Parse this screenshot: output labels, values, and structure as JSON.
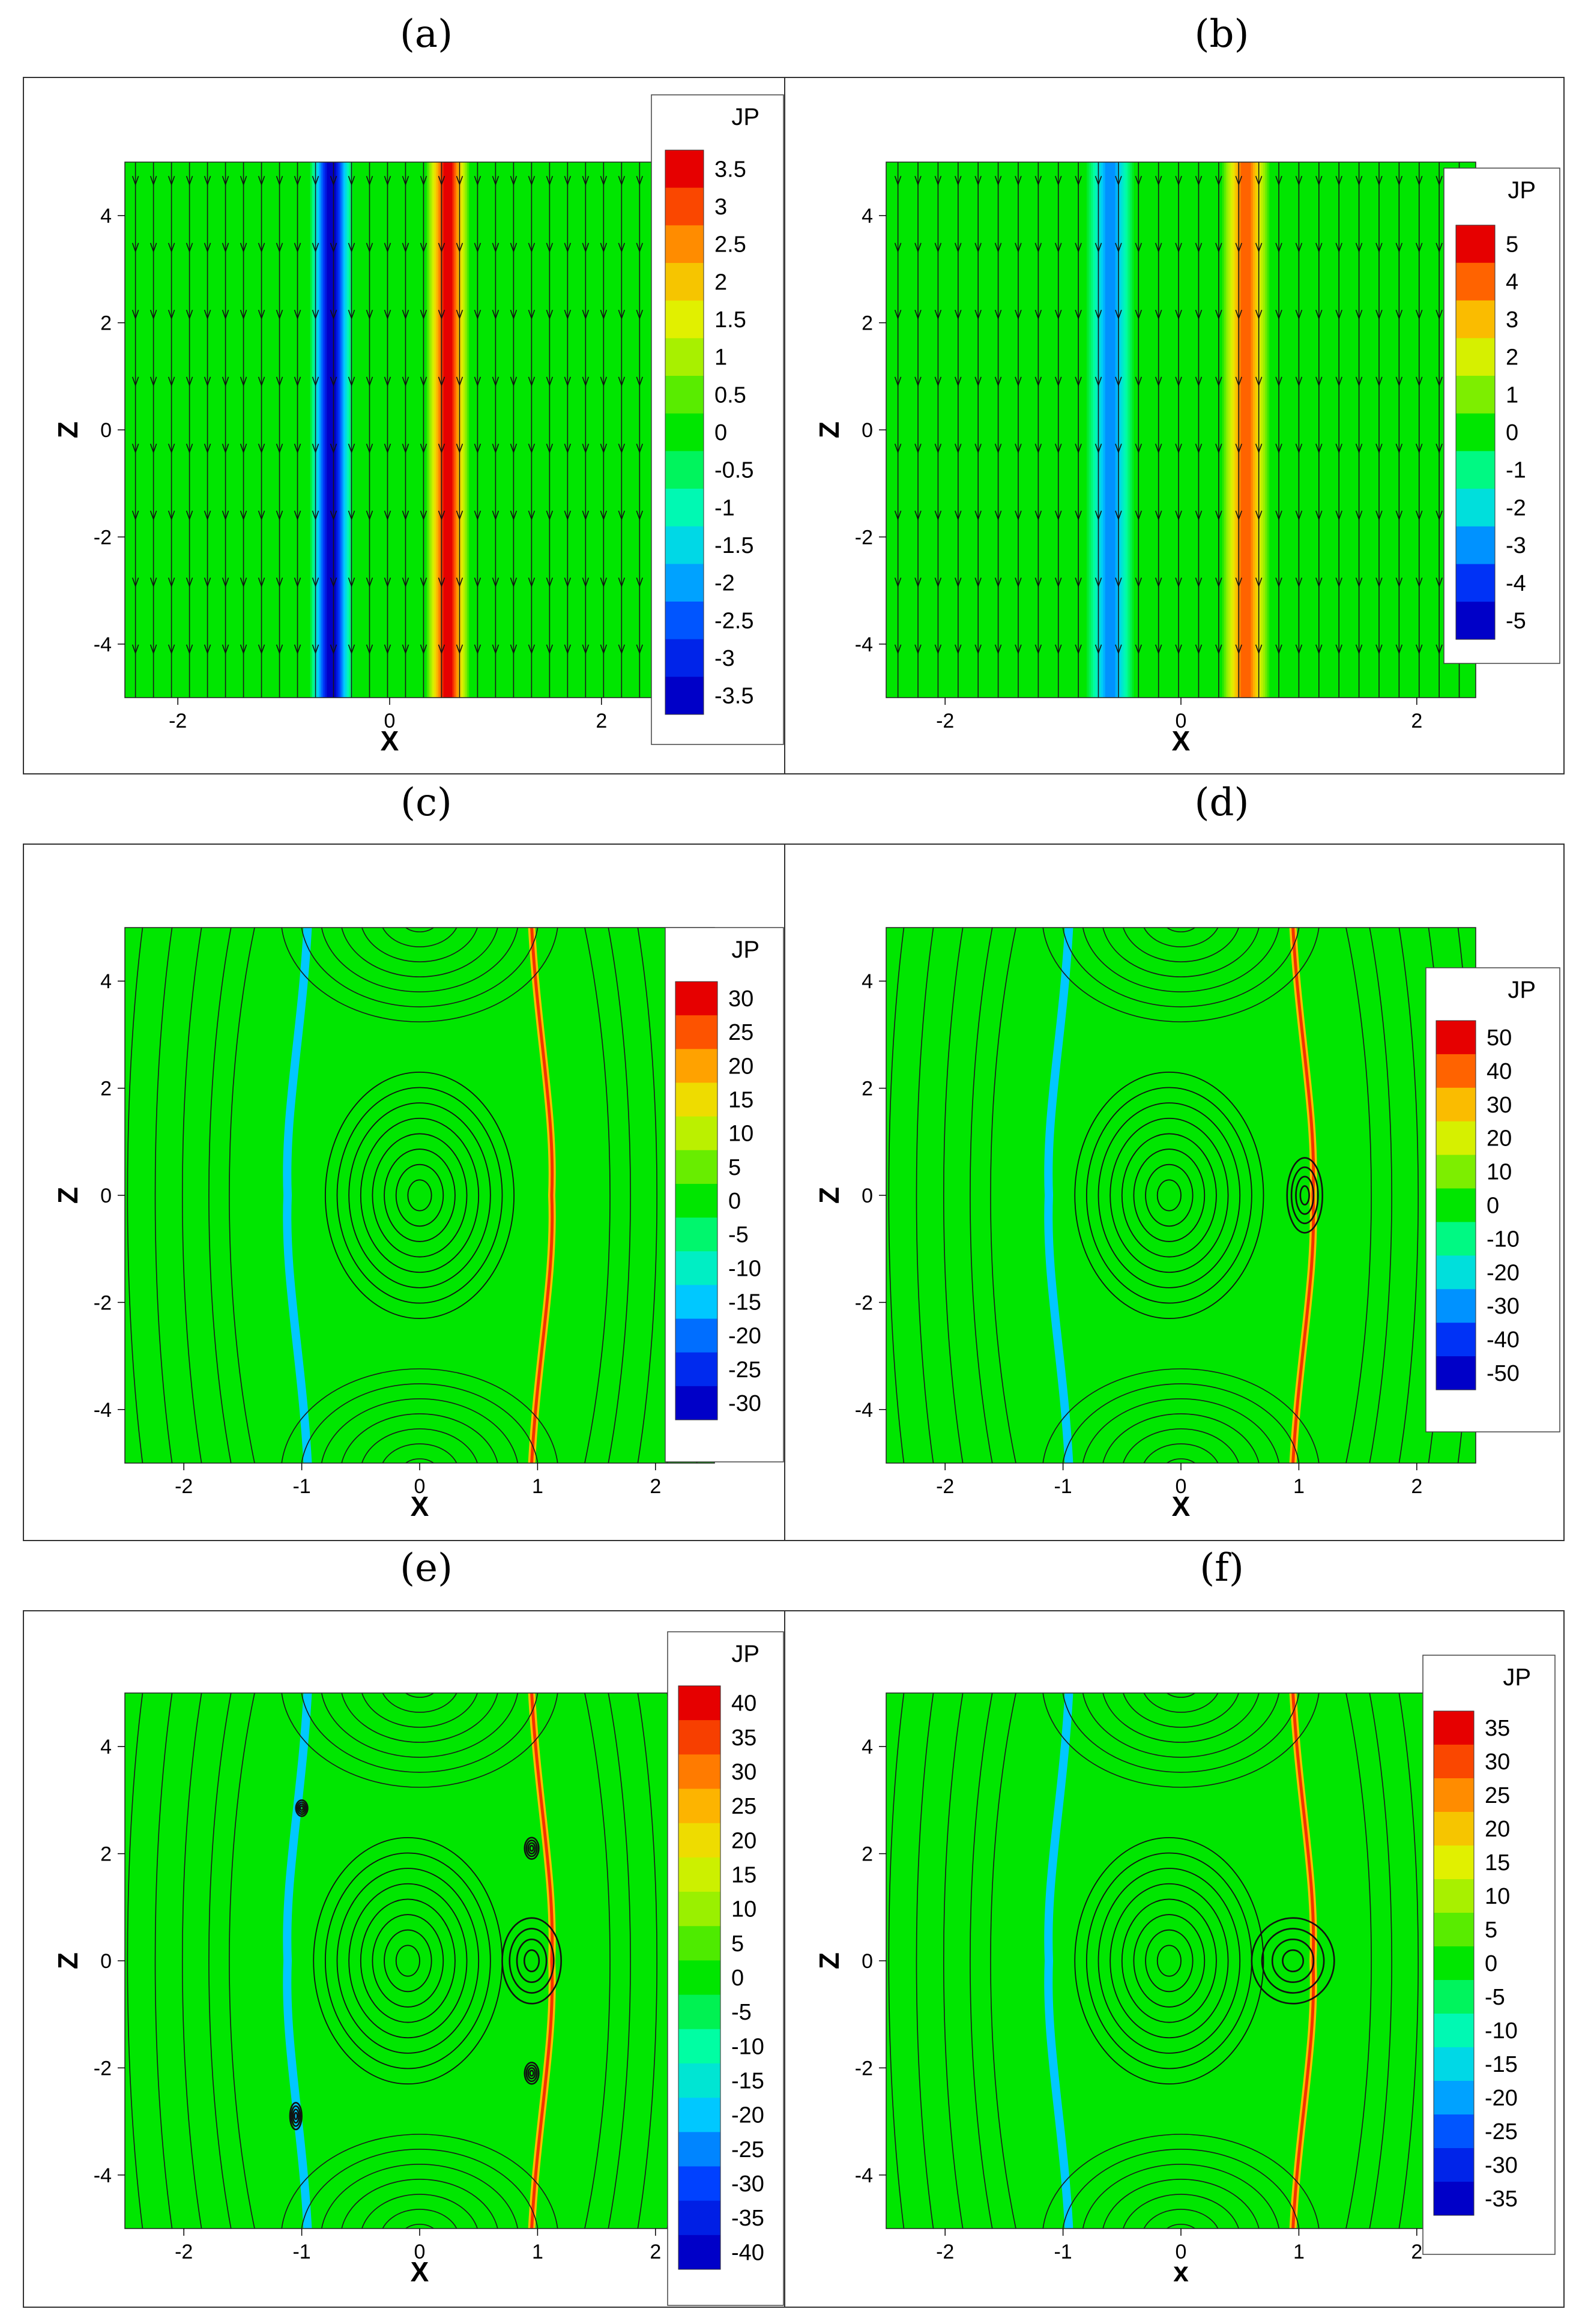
{
  "figure": {
    "panel_labels": [
      "(a)",
      "(b)",
      "(c)",
      "(d)",
      "(e)",
      "(f)"
    ]
  },
  "chart_data": [
    {
      "id": "a",
      "type": "heatmap",
      "title": "(a)",
      "xlabel": "X",
      "ylabel": "Z",
      "xlim": [
        -2.5,
        2.5
      ],
      "ylim": [
        -5,
        5
      ],
      "xticks": [
        -2,
        0,
        2
      ],
      "yticks": [
        -4,
        -2,
        0,
        2,
        4
      ],
      "colorbar": {
        "title": "JP",
        "levels": [
          "3.5",
          "3",
          "2.5",
          "2",
          "1.5",
          "1",
          "0.5",
          "0",
          "-0.5",
          "-1",
          "-1.5",
          "-2",
          "-2.5",
          "-3",
          "-3.5"
        ],
        "min": -3.5,
        "max": 3.5
      },
      "features": {
        "sheet_x": [
          -0.55,
          0.55
        ],
        "sheet_value": [
          -3.5,
          3.5
        ],
        "islands": []
      }
    },
    {
      "id": "b",
      "type": "heatmap",
      "title": "(b)",
      "xlabel": "X",
      "ylabel": "Z",
      "xlim": [
        -2.5,
        2.5
      ],
      "ylim": [
        -5,
        5
      ],
      "xticks": [
        -2,
        0,
        2
      ],
      "yticks": [
        -4,
        -2,
        0,
        2,
        4
      ],
      "colorbar": {
        "title": "JP",
        "levels": [
          "5",
          "4",
          "3",
          "2",
          "1",
          "0",
          "-1",
          "-2",
          "-3",
          "-4",
          "-5"
        ],
        "min": -5,
        "max": 5
      },
      "features": {
        "sheet_x": [
          -0.6,
          0.55
        ],
        "sheet_value": [
          -3,
          4
        ],
        "islands": []
      }
    },
    {
      "id": "c",
      "type": "heatmap",
      "title": "(c)",
      "xlabel": "X",
      "ylabel": "Z",
      "xlim": [
        -2.5,
        2.5
      ],
      "ylim": [
        -5,
        5
      ],
      "xticks": [
        -2,
        -1,
        0,
        1,
        2
      ],
      "yticks": [
        -4,
        -2,
        0,
        2,
        4
      ],
      "colorbar": {
        "title": "JP",
        "levels": [
          "30",
          "25",
          "20",
          "15",
          "10",
          "5",
          "0",
          "-5",
          "-10",
          "-15",
          "-20",
          "-25",
          "-30"
        ],
        "min": -30,
        "max": 30
      },
      "features": {
        "islands": [
          {
            "x": 0,
            "z": 0,
            "rx": 0.8,
            "rz": 2.3
          }
        ]
      }
    },
    {
      "id": "d",
      "type": "heatmap",
      "title": "(d)",
      "xlabel": "X",
      "ylabel": "Z",
      "xlim": [
        -2.5,
        2.5
      ],
      "ylim": [
        -5,
        5
      ],
      "xticks": [
        -2,
        -1,
        0,
        1,
        2
      ],
      "yticks": [
        -4,
        -2,
        0,
        2,
        4
      ],
      "colorbar": {
        "title": "JP",
        "levels": [
          "50",
          "40",
          "30",
          "20",
          "10",
          "0",
          "-10",
          "-20",
          "-30",
          "-40",
          "-50"
        ],
        "min": -50,
        "max": 50
      },
      "features": {
        "islands": [
          {
            "x": -0.1,
            "z": 0,
            "rx": 0.8,
            "rz": 2.3
          },
          {
            "x": 1.05,
            "z": 0,
            "rx": 0.15,
            "rz": 0.7
          }
        ]
      }
    },
    {
      "id": "e",
      "type": "heatmap",
      "title": "(e)",
      "xlabel": "X",
      "ylabel": "Z",
      "xlim": [
        -2.5,
        2.5
      ],
      "ylim": [
        -5,
        5
      ],
      "xticks": [
        -2,
        -1,
        0,
        1,
        2
      ],
      "yticks": [
        -4,
        -2,
        0,
        2,
        4
      ],
      "colorbar": {
        "title": "JP",
        "levels": [
          "40",
          "35",
          "30",
          "25",
          "20",
          "15",
          "10",
          "5",
          "0",
          "-5",
          "-10",
          "-15",
          "-20",
          "-25",
          "-30",
          "-35",
          "-40"
        ],
        "min": -40,
        "max": 40
      },
      "features": {
        "islands": [
          {
            "x": -0.1,
            "z": 0,
            "rx": 0.8,
            "rz": 2.3
          },
          {
            "x": 0.95,
            "z": 0,
            "rx": 0.25,
            "rz": 0.8
          },
          {
            "x": 0.95,
            "z": 2.1,
            "rx": 0.06,
            "rz": 0.2
          },
          {
            "x": 0.95,
            "z": -2.1,
            "rx": 0.06,
            "rz": 0.2
          },
          {
            "x": -1.0,
            "z": 2.85,
            "rx": 0.05,
            "rz": 0.15
          },
          {
            "x": -1.05,
            "z": -2.9,
            "rx": 0.05,
            "rz": 0.25
          }
        ]
      }
    },
    {
      "id": "f",
      "type": "heatmap",
      "title": "(f)",
      "xlabel": "x",
      "ylabel": "Z",
      "xlim": [
        -2.5,
        2.5
      ],
      "ylim": [
        -5,
        5
      ],
      "xticks": [
        -2,
        -1,
        0,
        1,
        2
      ],
      "yticks": [
        -4,
        -2,
        0,
        2,
        4
      ],
      "colorbar": {
        "title": "JP",
        "levels": [
          "35",
          "30",
          "25",
          "20",
          "15",
          "10",
          "5",
          "0",
          "-5",
          "-10",
          "-15",
          "-20",
          "-25",
          "-30",
          "-35"
        ],
        "min": -35,
        "max": 35
      },
      "features": {
        "islands": [
          {
            "x": -0.1,
            "z": 0,
            "rx": 0.8,
            "rz": 2.3
          },
          {
            "x": 0.95,
            "z": 0,
            "rx": 0.35,
            "rz": 0.8
          }
        ]
      }
    }
  ]
}
